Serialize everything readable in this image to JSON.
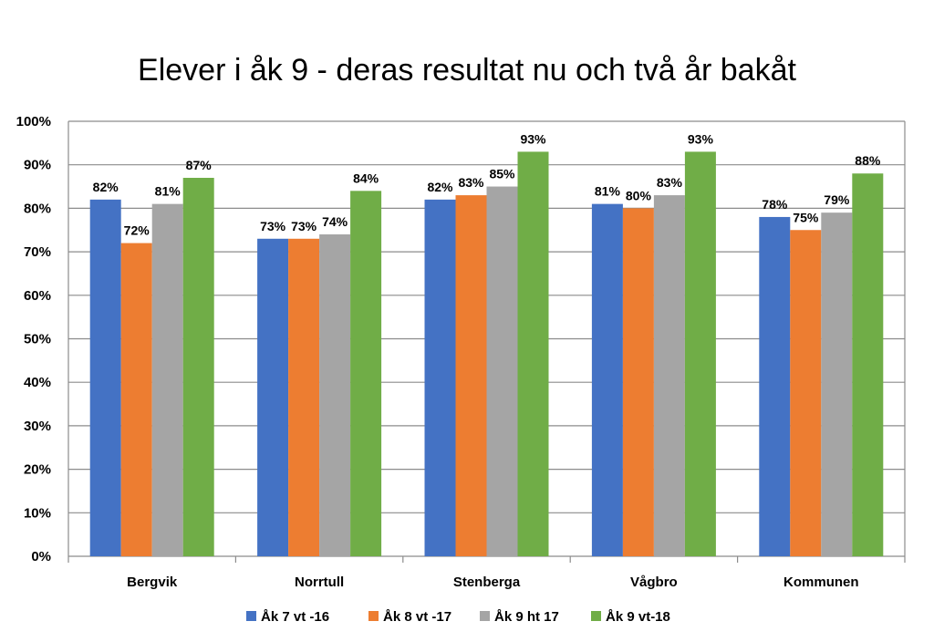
{
  "chart_data": {
    "type": "bar",
    "title": "Elever i åk 9 - deras resultat nu och två år bakåt",
    "xlabel": "",
    "ylabel": "",
    "ylim": [
      0,
      100
    ],
    "yticks": [
      "0%",
      "10%",
      "20%",
      "30%",
      "40%",
      "50%",
      "60%",
      "70%",
      "80%",
      "90%",
      "100%"
    ],
    "grid": true,
    "legend_position": "bottom",
    "categories": [
      "Bergvik",
      "Norrtull",
      "Stenberga",
      "Vågbro",
      "Kommunen"
    ],
    "series": [
      {
        "name": "Åk 7 vt -16",
        "color": "#4472C4",
        "values": [
          82,
          73,
          82,
          81,
          78
        ],
        "labels": [
          "82%",
          "73%",
          "82%",
          "81%",
          "78%"
        ]
      },
      {
        "name": "Åk 8 vt -17",
        "color": "#ED7D31",
        "values": [
          72,
          73,
          83,
          80,
          75
        ],
        "labels": [
          "72%",
          "73%",
          "83%",
          "80%",
          "75%"
        ]
      },
      {
        "name": "Åk 9 ht 17",
        "color": "#A5A5A5",
        "values": [
          81,
          74,
          85,
          83,
          79
        ],
        "labels": [
          "81%",
          "74%",
          "85%",
          "83%",
          "79%"
        ]
      },
      {
        "name": "Åk 9 vt-18",
        "color": "#70AD47",
        "values": [
          87,
          84,
          93,
          93,
          88
        ],
        "labels": [
          "87%",
          "84%",
          "93%",
          "93%",
          "88%"
        ]
      }
    ]
  }
}
